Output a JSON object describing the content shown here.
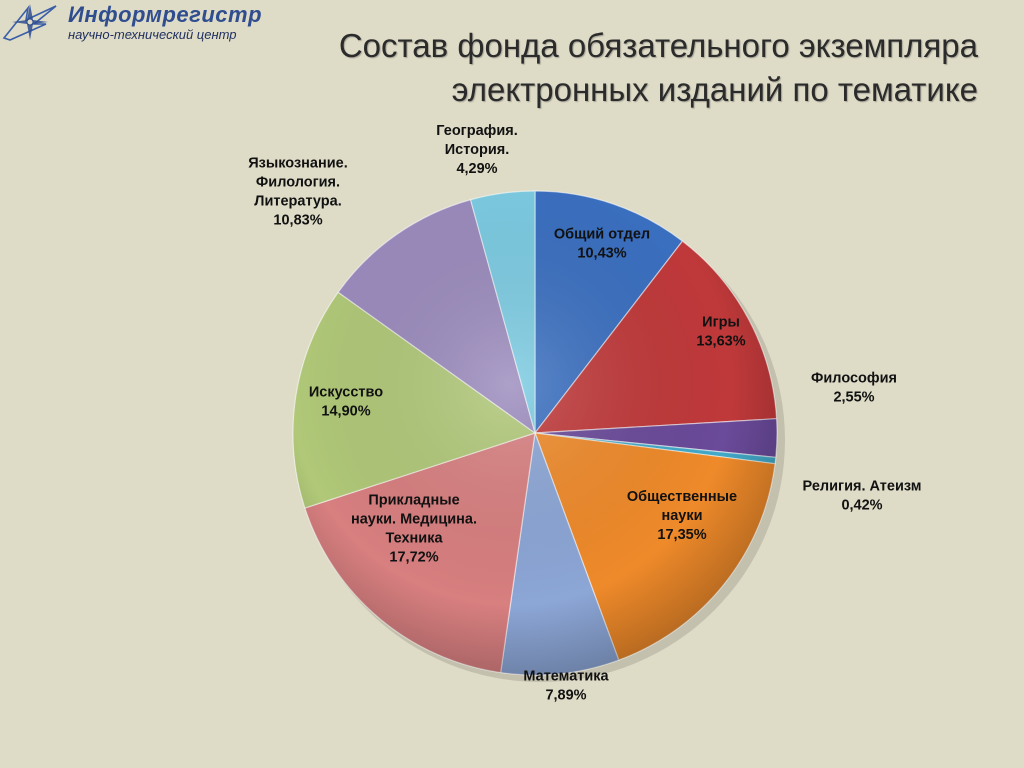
{
  "header": {
    "logo_name": "Информрегистр",
    "logo_subtitle": "научно-технический центр"
  },
  "title_lines": [
    "Состав фонда обязательного экземпляра",
    "электронных изданий по тематике"
  ],
  "chart_data": {
    "type": "pie",
    "title": "Состав фонда обязательного экземпляра электронных изданий по тематике",
    "slices": [
      {
        "label": [
          "Общий отдел"
        ],
        "value_label": "10,43%",
        "value": 10.43,
        "color": "#3a6fc0"
      },
      {
        "label": [
          "Игры"
        ],
        "value_label": "13,63%",
        "value": 13.63,
        "color": "#c0393a"
      },
      {
        "label": [
          "Философия"
        ],
        "value_label": "2,55%",
        "value": 2.55,
        "color": "#6a4a9a"
      },
      {
        "label": [
          "Религия. Атеизм"
        ],
        "value_label": "0,42%",
        "value": 0.42,
        "color": "#42a9c8"
      },
      {
        "label": [
          "Общественные",
          "науки"
        ],
        "value_label": "17,35%",
        "value": 17.35,
        "color": "#ef8a2a"
      },
      {
        "label": [
          "Математика"
        ],
        "value_label": "7,89%",
        "value": 7.89,
        "color": "#8ca6d6"
      },
      {
        "label": [
          "Прикладные",
          "науки. Медицина.",
          "Техника"
        ],
        "value_label": "17,72%",
        "value": 17.72,
        "color": "#d87f80"
      },
      {
        "label": [
          "Искусство"
        ],
        "value_label": "14,90%",
        "value": 14.9,
        "color": "#b0c878"
      },
      {
        "label": [
          "Языкознание.",
          "Филология.",
          "Литература."
        ],
        "value_label": "10,83%",
        "value": 10.83,
        "color": "#9b8bbd"
      },
      {
        "label": [
          "География.",
          "История."
        ],
        "value_label": "4,29%",
        "value": 4.29,
        "color": "#7ccbe2"
      }
    ]
  }
}
